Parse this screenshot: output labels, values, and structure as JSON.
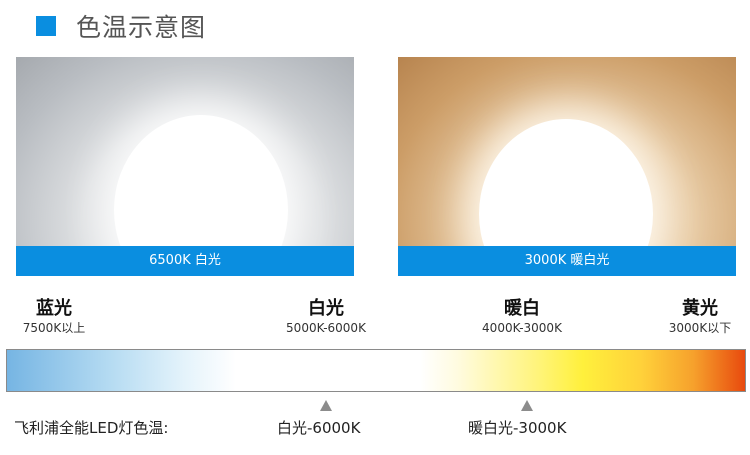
{
  "header": {
    "title": "色温示意图",
    "accent_color": "#0a8ee0"
  },
  "panels": [
    {
      "caption": "6500K  白光"
    },
    {
      "caption": "3000K  暖白光"
    }
  ],
  "scale": {
    "labels": [
      {
        "name": "蓝光",
        "range": "7500K以上"
      },
      {
        "name": "白光",
        "range": "5000K-6000K"
      },
      {
        "name": "暖白",
        "range": "4000K-3000K"
      },
      {
        "name": "黄光",
        "range": "3000K以下"
      }
    ]
  },
  "footer": {
    "brand_label": "飞利浦全能LED灯色温:",
    "markers": [
      {
        "label": "白光-6000K"
      },
      {
        "label": "暖白光-3000K"
      }
    ]
  }
}
